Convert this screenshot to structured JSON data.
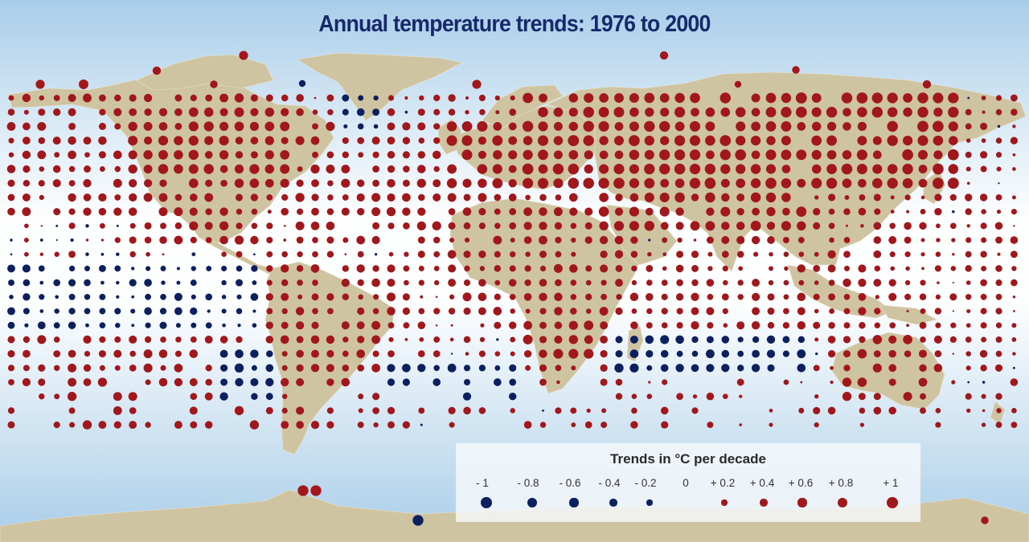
{
  "title": "Annual temperature trends:  1976 to 2000",
  "colors": {
    "warming": "#a0171c",
    "cooling": "#0c1f5e",
    "land": "#cfc4a2",
    "ocean_light": "#ffffff",
    "ocean_blue": "#a9cde9",
    "title": "#162a6b"
  },
  "legend": {
    "title": "Trends in °C per decade",
    "items": [
      {
        "label": "- 1",
        "value": -1.0
      },
      {
        "label": "- 0.8",
        "value": -0.8
      },
      {
        "label": "- 0.6",
        "value": -0.6
      },
      {
        "label": "- 0.4",
        "value": -0.4
      },
      {
        "label": "- 0.2",
        "value": -0.2
      },
      {
        "label": "0",
        "value": 0
      },
      {
        "label": "+ 0.2",
        "value": 0.2
      },
      {
        "label": "+ 0.4",
        "value": 0.4
      },
      {
        "label": "+ 0.6",
        "value": 0.6
      },
      {
        "label": "+ 0.8",
        "value": 0.8
      },
      {
        "label": "+ 1",
        "value": 1.0
      }
    ]
  },
  "trend_map": {
    "variable": "annual temperature trend",
    "unit": "°C per decade",
    "period": "1976 to 2000",
    "encoding": "circle area/size proportional to magnitude; red = warming, dark blue = cooling",
    "regional_trends": [
      {
        "region": "Arctic / northern Canada",
        "trend": 0.5
      },
      {
        "region": "Canada and northern USA",
        "trend": 0.55
      },
      {
        "region": "Southern USA / Mexico",
        "trend": 0.45
      },
      {
        "region": "North Pacific",
        "trend": 0.35
      },
      {
        "region": "Tropical Pacific",
        "trend": 0.15
      },
      {
        "region": "Eastern tropical Pacific",
        "trend": -0.25
      },
      {
        "region": "South Pacific",
        "trend": 0.4
      },
      {
        "region": "South America",
        "trend": 0.35
      },
      {
        "region": "Southeast Pacific off Chile",
        "trend": -0.4
      },
      {
        "region": "North Atlantic",
        "trend": 0.4
      },
      {
        "region": "Greenland area",
        "trend": -0.3
      },
      {
        "region": "South Atlantic",
        "trend": -0.4
      },
      {
        "region": "Europe",
        "trend": 0.65
      },
      {
        "region": "Northern Eurasia / Siberia",
        "trend": 0.75
      },
      {
        "region": "Middle East / Central Asia",
        "trend": 0.6
      },
      {
        "region": "Africa",
        "trend": 0.35
      },
      {
        "region": "Southern Africa",
        "trend": 0.55
      },
      {
        "region": "Indian Ocean",
        "trend": 0.3
      },
      {
        "region": "Southern Indian Ocean",
        "trend": -0.4
      },
      {
        "region": "South Asia / Southeast Asia",
        "trend": 0.3
      },
      {
        "region": "Australia",
        "trend": 0.45
      },
      {
        "region": "Antarctic Peninsula",
        "trend": 0.9
      },
      {
        "region": "East Antarctica coast",
        "trend": -0.9
      }
    ]
  }
}
